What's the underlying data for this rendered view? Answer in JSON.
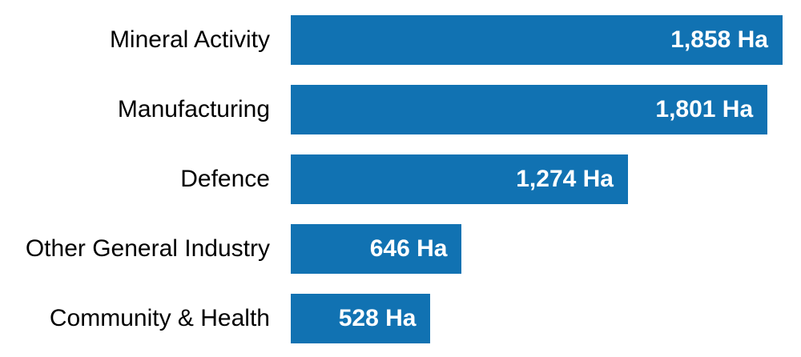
{
  "chart_data": {
    "type": "bar",
    "orientation": "horizontal",
    "title": "",
    "xlabel": "",
    "ylabel": "",
    "unit": "Ha",
    "categories": [
      "Mineral Activity",
      "Manufacturing",
      "Defence",
      "Other General Industry",
      "Community & Health"
    ],
    "values": [
      1858,
      1801,
      1274,
      646,
      528
    ],
    "value_labels": [
      "1,858 Ha",
      "1,801 Ha",
      "1,274 Ha",
      "646 Ha",
      "528 Ha"
    ],
    "xlim": [
      0,
      1858
    ],
    "grid": false,
    "legend": false,
    "colors": {
      "bar_fill": "#1172b2",
      "category_label_text": "#000000",
      "value_label_text": "#ffffff",
      "background": "#ffffff"
    }
  }
}
